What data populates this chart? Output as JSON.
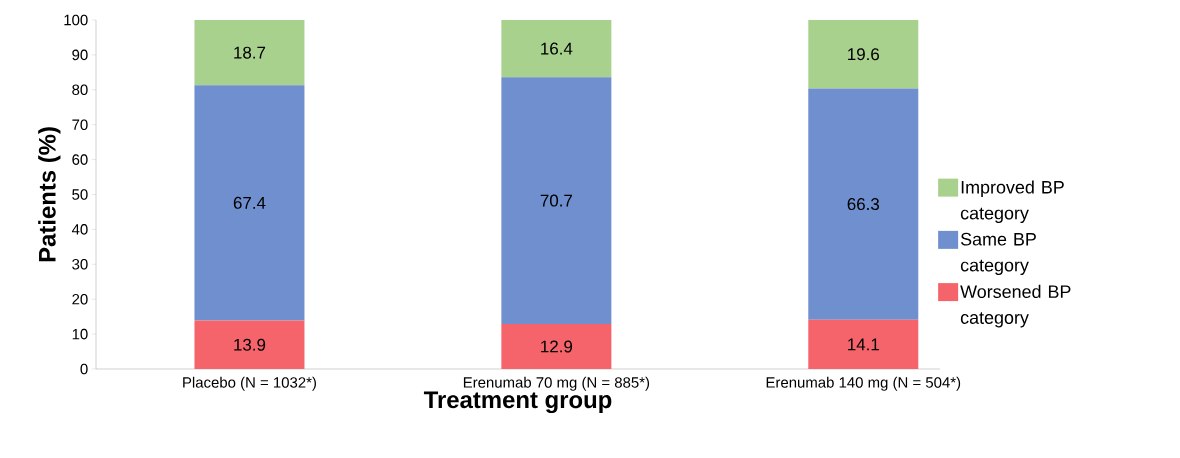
{
  "chart_data": {
    "type": "bar",
    "stacked": true,
    "xlabel": "Treatment group",
    "ylabel": "Patients (%)",
    "categories": [
      "Placebo (N = 1032*)",
      "Erenumab 70 mg (N = 885*)",
      "Erenumab 140 mg (N = 504*)"
    ],
    "series": [
      {
        "name": "Worsened BP category",
        "color": "#f4646a",
        "values": [
          13.9,
          12.9,
          14.1
        ]
      },
      {
        "name": "Same BP category",
        "color": "#6f8fcf",
        "values": [
          67.4,
          70.7,
          66.3
        ]
      },
      {
        "name": "Improved BP category",
        "color": "#a9d18e",
        "values": [
          18.7,
          16.4,
          19.6
        ]
      }
    ],
    "ylim": [
      0,
      100
    ],
    "yticks": [
      0,
      10,
      20,
      30,
      40,
      50,
      60,
      70,
      80,
      90,
      100
    ],
    "data_labels": true,
    "legend": "right",
    "grid": false
  }
}
